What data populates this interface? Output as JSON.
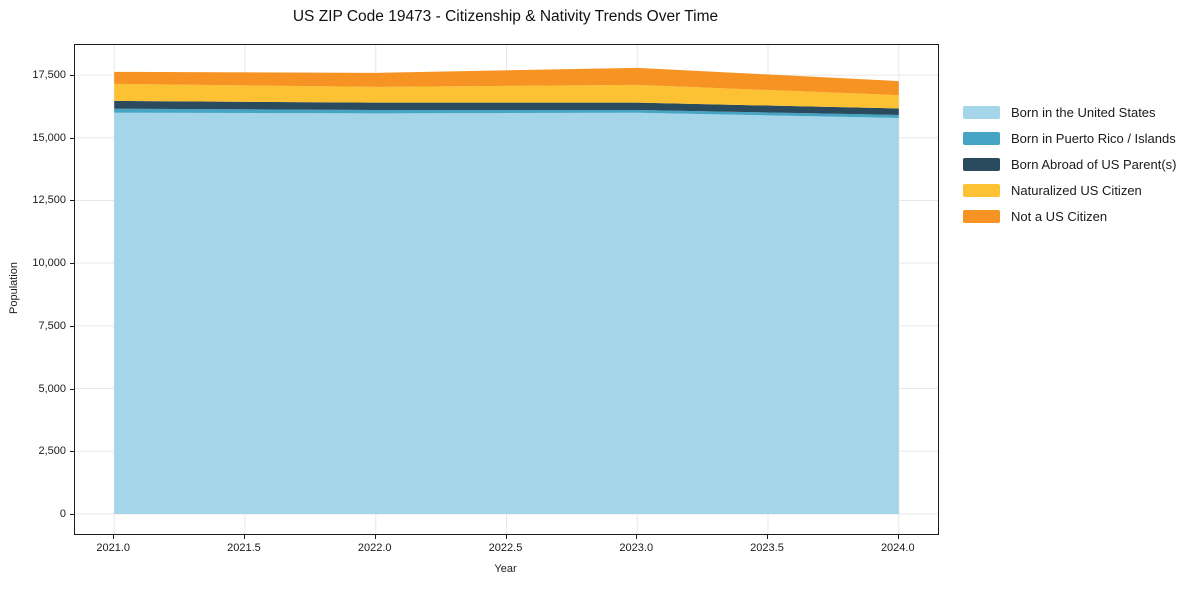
{
  "title": "US ZIP Code 19473 - Citizenship & Nativity Trends Over Time",
  "chart_data": {
    "type": "area",
    "stacked": true,
    "title": "US ZIP Code 19473 - Citizenship & Nativity Trends Over Time",
    "xlabel": "Year",
    "ylabel": "Population",
    "x": [
      2021,
      2022,
      2023,
      2024
    ],
    "series": [
      {
        "name": "Born in the United States",
        "color": "#a5d5e8",
        "values": [
          16000,
          15975,
          16000,
          15790
        ]
      },
      {
        "name": "Born in Puerto Rico / Islands",
        "color": "#46a5c4",
        "values": [
          160,
          135,
          110,
          120
        ]
      },
      {
        "name": "Born Abroad of US Parent(s)",
        "color": "#2a4a5e",
        "values": [
          310,
          290,
          290,
          260
        ]
      },
      {
        "name": "Naturalized US Citizen",
        "color": "#fcc233",
        "values": [
          680,
          630,
          710,
          530
        ]
      },
      {
        "name": "Not a US Citizen",
        "color": "#f79322",
        "values": [
          480,
          560,
          680,
          560
        ]
      }
    ],
    "x_ticks": [
      2021.0,
      2021.5,
      2022.0,
      2022.5,
      2023.0,
      2023.5,
      2024.0
    ],
    "x_tick_labels": [
      "2021.0",
      "2021.5",
      "2022.0",
      "2022.5",
      "2023.0",
      "2023.5",
      "2024.0"
    ],
    "y_ticks": [
      0,
      2500,
      5000,
      7500,
      10000,
      12500,
      15000,
      17500
    ],
    "y_tick_labels": [
      "0",
      "2,500",
      "5,000",
      "7,500",
      "10,000",
      "12,500",
      "15,000",
      "17,500"
    ],
    "xlim": [
      2020.85,
      2024.15
    ],
    "ylim": [
      -800,
      18700
    ],
    "grid": true,
    "grid_color": "#e8e8e8",
    "legend_position": "right outside"
  }
}
